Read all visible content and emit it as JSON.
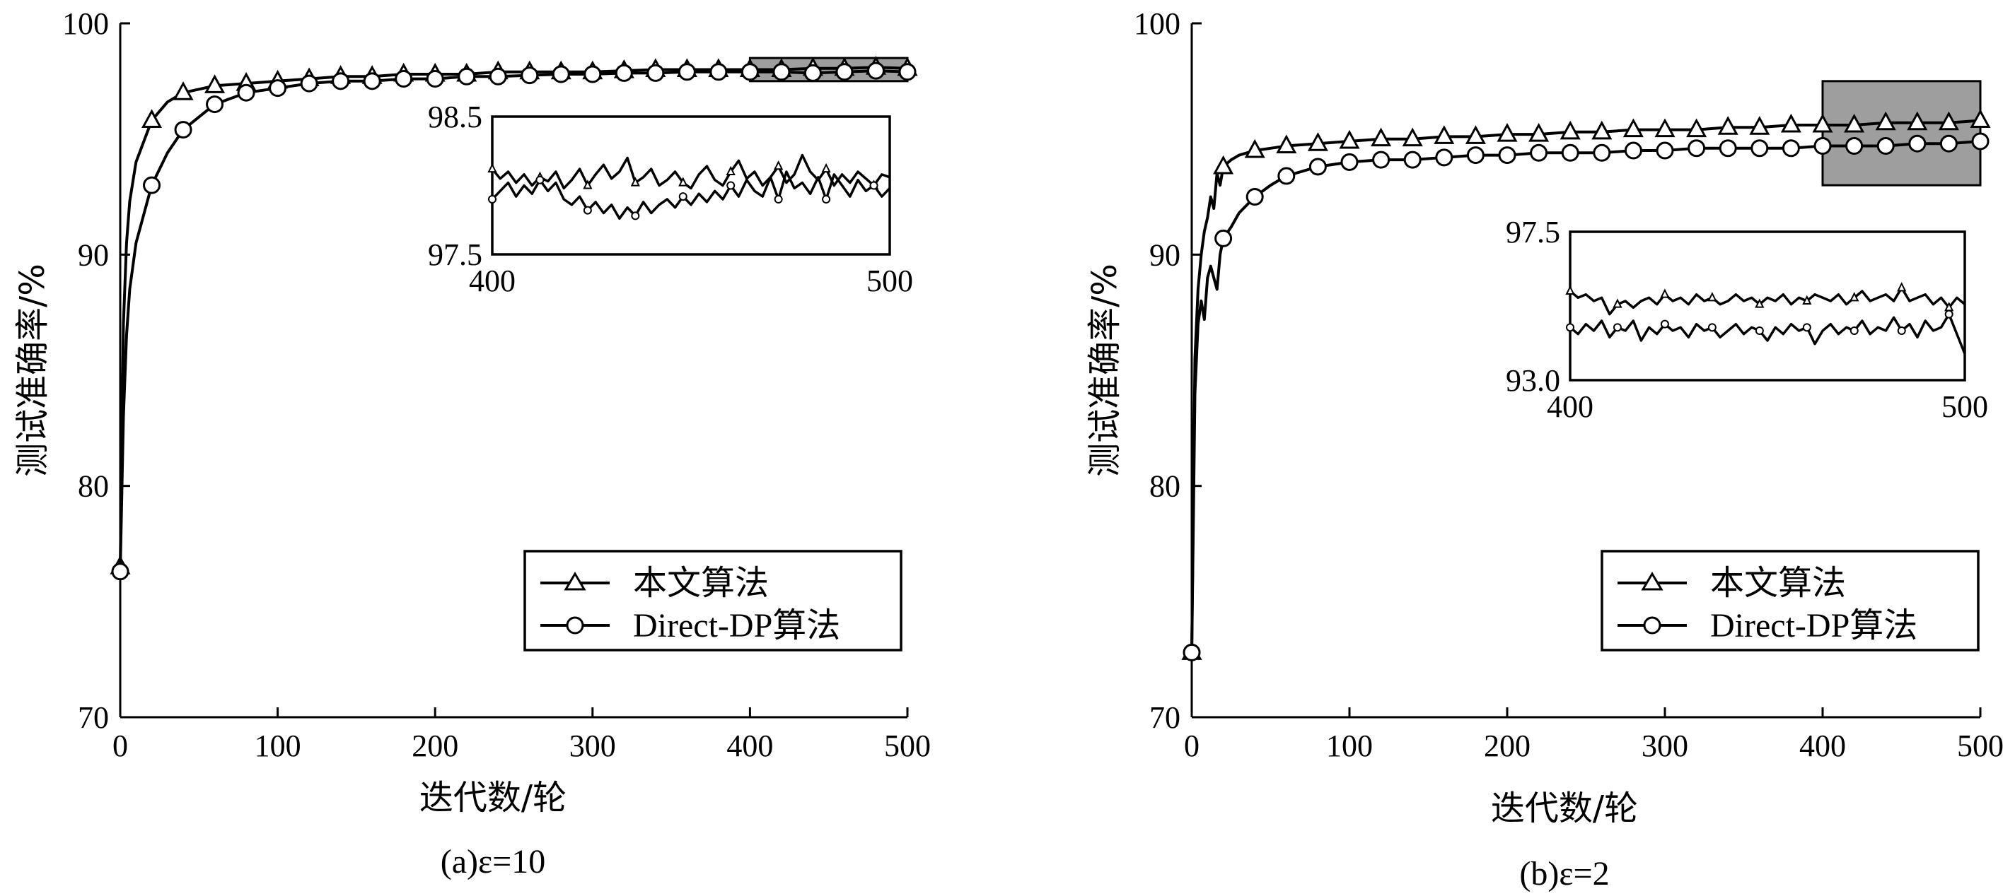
{
  "chart_data": [
    {
      "type": "line",
      "caption": "(a)ε=10",
      "xlabel": "迭代数/轮",
      "ylabel": "测试准确率/%",
      "xlim": [
        0,
        500
      ],
      "ylim": [
        70,
        100
      ],
      "xticks": [
        0,
        100,
        200,
        300,
        400,
        500
      ],
      "yticks": [
        70,
        80,
        90,
        100
      ],
      "legend_position": "bottom-right",
      "series": [
        {
          "name": "本文算法",
          "marker": "triangle",
          "x": [
            0,
            2,
            4,
            6,
            10,
            20,
            30,
            40,
            60,
            80,
            100,
            120,
            140,
            160,
            180,
            200,
            220,
            240,
            260,
            280,
            300,
            320,
            340,
            360,
            380,
            400,
            420,
            440,
            460,
            480,
            500
          ],
          "y": [
            76.5,
            87.0,
            90.5,
            92.3,
            94.0,
            95.8,
            96.6,
            97.0,
            97.3,
            97.4,
            97.5,
            97.6,
            97.7,
            97.7,
            97.8,
            97.8,
            97.8,
            97.9,
            97.9,
            97.9,
            97.9,
            97.95,
            98.0,
            98.0,
            98.0,
            98.0,
            98.0,
            98.05,
            98.05,
            98.1,
            98.05
          ],
          "marker_x": [
            0,
            20,
            40,
            60,
            80,
            100,
            120,
            140,
            160,
            180,
            200,
            220,
            240,
            260,
            280,
            300,
            320,
            340,
            360,
            380,
            400,
            420,
            440,
            460,
            480,
            500
          ]
        },
        {
          "name": "Direct-DP算法",
          "marker": "circle",
          "x": [
            0,
            2,
            4,
            6,
            10,
            20,
            30,
            40,
            60,
            80,
            100,
            120,
            140,
            160,
            180,
            200,
            220,
            240,
            260,
            280,
            300,
            320,
            340,
            360,
            380,
            400,
            420,
            440,
            460,
            480,
            500
          ],
          "y": [
            76.3,
            83.0,
            86.5,
            88.5,
            90.5,
            93.0,
            94.4,
            95.4,
            96.5,
            97.0,
            97.2,
            97.4,
            97.5,
            97.5,
            97.6,
            97.6,
            97.7,
            97.7,
            97.75,
            97.8,
            97.8,
            97.85,
            97.85,
            97.9,
            97.9,
            97.9,
            97.9,
            97.85,
            97.9,
            97.95,
            97.9
          ],
          "marker_x": [
            0,
            20,
            40,
            60,
            80,
            100,
            120,
            140,
            160,
            180,
            200,
            220,
            240,
            260,
            280,
            300,
            320,
            340,
            360,
            380,
            400,
            420,
            440,
            460,
            480,
            500
          ]
        }
      ],
      "highlight_region": {
        "x": [
          400,
          500
        ],
        "y": [
          97.5,
          98.5
        ]
      },
      "inset": {
        "xlim": [
          400,
          500
        ],
        "ylim": [
          97.5,
          98.5
        ],
        "xticks": [
          400,
          500
        ],
        "yticks": [
          97.5,
          98.5
        ],
        "series": [
          {
            "name": "本文算法",
            "x": [
              400,
              402,
              404,
              406,
              408,
              410,
              412,
              414,
              416,
              418,
              420,
              422,
              424,
              426,
              428,
              430,
              432,
              434,
              436,
              438,
              440,
              442,
              444,
              446,
              448,
              450,
              452,
              454,
              456,
              458,
              460,
              462,
              464,
              466,
              468,
              470,
              472,
              474,
              476,
              478,
              480,
              482,
              484,
              486,
              488,
              490,
              492,
              494,
              496,
              498,
              500
            ],
            "y": [
              98.12,
              98.05,
              98.1,
              98.02,
              98.08,
              98.0,
              98.06,
              98.03,
              98.1,
              97.98,
              98.04,
              98.12,
              98.0,
              98.08,
              98.15,
              98.05,
              98.1,
              98.2,
              98.02,
              98.06,
              98.12,
              98.0,
              98.04,
              98.1,
              98.02,
              97.98,
              98.08,
              98.14,
              98.04,
              98.0,
              98.1,
              98.18,
              98.05,
              98.1,
              98.0,
              98.06,
              98.14,
              98.02,
              98.08,
              98.22,
              98.1,
              98.04,
              98.12,
              98.0,
              98.08,
              98.02,
              98.1,
              98.05,
              98.0,
              98.08,
              98.06
            ]
          },
          {
            "name": "Direct-DP算法",
            "x": [
              400,
              402,
              404,
              406,
              408,
              410,
              412,
              414,
              416,
              418,
              420,
              422,
              424,
              426,
              428,
              430,
              432,
              434,
              436,
              438,
              440,
              442,
              444,
              446,
              448,
              450,
              452,
              454,
              456,
              458,
              460,
              462,
              464,
              466,
              468,
              470,
              472,
              474,
              476,
              478,
              480,
              482,
              484,
              486,
              488,
              490,
              492,
              494,
              496,
              498,
              500
            ],
            "y": [
              97.9,
              97.96,
              98.02,
              97.92,
              98.0,
              97.94,
              98.04,
              97.96,
              98.02,
              97.9,
              97.86,
              97.92,
              97.82,
              97.88,
              97.8,
              97.86,
              97.76,
              97.84,
              97.78,
              97.88,
              97.8,
              97.86,
              97.9,
              97.84,
              97.92,
              97.86,
              97.94,
              97.88,
              97.96,
              97.9,
              98.0,
              97.92,
              98.04,
              97.96,
              97.92,
              98.06,
              97.9,
              98.1,
              97.98,
              98.02,
              97.94,
              98.06,
              97.9,
              98.08,
              98.0,
              97.92,
              98.04,
              97.96,
              98.0,
              97.92,
              97.98
            ]
          }
        ]
      }
    },
    {
      "type": "line",
      "caption": "(b)ε=2",
      "xlabel": "迭代数/轮",
      "ylabel": "测试准确率/%",
      "xlim": [
        0,
        500
      ],
      "ylim": [
        70,
        100
      ],
      "xticks": [
        0,
        100,
        200,
        300,
        400,
        500
      ],
      "yticks": [
        70,
        80,
        90,
        100
      ],
      "legend_position": "bottom-right",
      "series": [
        {
          "name": "本文算法",
          "marker": "triangle",
          "x": [
            0,
            2,
            4,
            6,
            8,
            10,
            12,
            14,
            16,
            18,
            20,
            25,
            30,
            40,
            50,
            60,
            80,
            100,
            120,
            140,
            160,
            180,
            200,
            220,
            240,
            260,
            280,
            300,
            320,
            340,
            360,
            380,
            400,
            420,
            440,
            460,
            480,
            500
          ],
          "y": [
            72.8,
            85.5,
            88.5,
            90.0,
            91.0,
            91.6,
            92.5,
            92.0,
            93.5,
            93.0,
            93.8,
            94.1,
            94.3,
            94.5,
            94.6,
            94.7,
            94.8,
            94.9,
            95.0,
            95.0,
            95.1,
            95.1,
            95.2,
            95.2,
            95.3,
            95.3,
            95.4,
            95.4,
            95.4,
            95.5,
            95.5,
            95.6,
            95.6,
            95.6,
            95.7,
            95.7,
            95.7,
            95.8
          ],
          "marker_x": [
            0,
            20,
            40,
            60,
            80,
            100,
            120,
            140,
            160,
            180,
            200,
            220,
            240,
            260,
            280,
            300,
            320,
            340,
            360,
            380,
            400,
            420,
            440,
            460,
            480,
            500
          ]
        },
        {
          "name": "Direct-DP算法",
          "marker": "circle",
          "x": [
            0,
            2,
            4,
            6,
            8,
            10,
            12,
            14,
            16,
            18,
            20,
            25,
            30,
            40,
            50,
            60,
            80,
            100,
            120,
            140,
            160,
            180,
            200,
            220,
            240,
            260,
            280,
            300,
            320,
            340,
            360,
            380,
            400,
            420,
            440,
            460,
            480,
            500
          ],
          "y": [
            72.8,
            84.0,
            87.0,
            88.0,
            87.2,
            89.0,
            89.5,
            89.0,
            88.5,
            90.0,
            90.7,
            91.2,
            91.8,
            92.5,
            93.0,
            93.4,
            93.8,
            94.0,
            94.1,
            94.1,
            94.2,
            94.3,
            94.3,
            94.4,
            94.4,
            94.4,
            94.5,
            94.5,
            94.6,
            94.6,
            94.6,
            94.6,
            94.7,
            94.7,
            94.7,
            94.8,
            94.8,
            94.9
          ],
          "marker_x": [
            0,
            20,
            40,
            60,
            80,
            100,
            120,
            140,
            160,
            180,
            200,
            220,
            240,
            260,
            280,
            300,
            320,
            340,
            360,
            380,
            400,
            420,
            440,
            460,
            480,
            500
          ]
        }
      ],
      "highlight_region": {
        "x": [
          400,
          500
        ],
        "y": [
          93.0,
          97.5
        ]
      },
      "inset": {
        "xlim": [
          400,
          500
        ],
        "ylim": [
          93.0,
          97.5
        ],
        "xticks": [
          400,
          500
        ],
        "yticks": [
          97.5,
          93.0
        ],
        "series": [
          {
            "name": "本文算法",
            "x": [
              400,
              402,
              404,
              406,
              408,
              410,
              412,
              414,
              416,
              418,
              420,
              422,
              424,
              426,
              428,
              430,
              432,
              434,
              436,
              438,
              440,
              442,
              444,
              446,
              448,
              450,
              452,
              454,
              456,
              458,
              460,
              462,
              464,
              466,
              468,
              470,
              472,
              474,
              476,
              478,
              480,
              482,
              484,
              486,
              488,
              490,
              492,
              494,
              496,
              498,
              500
            ],
            "y": [
              95.7,
              95.5,
              95.6,
              95.4,
              95.5,
              95.0,
              95.3,
              95.4,
              95.2,
              95.4,
              95.5,
              95.3,
              95.6,
              95.4,
              95.5,
              95.3,
              95.6,
              95.4,
              95.5,
              95.3,
              95.4,
              95.6,
              95.4,
              95.5,
              95.3,
              95.5,
              95.4,
              95.6,
              95.3,
              95.5,
              95.4,
              95.6,
              95.5,
              95.4,
              95.6,
              95.3,
              95.5,
              95.7,
              95.4,
              95.5,
              95.6,
              95.4,
              95.8,
              95.4,
              95.5,
              95.6,
              95.3,
              95.5,
              95.2,
              95.5,
              95.3
            ]
          },
          {
            "name": "Direct-DP算法",
            "x": [
              400,
              402,
              404,
              406,
              408,
              410,
              412,
              414,
              416,
              418,
              420,
              422,
              424,
              426,
              428,
              430,
              432,
              434,
              436,
              438,
              440,
              442,
              444,
              446,
              448,
              450,
              452,
              454,
              456,
              458,
              460,
              462,
              464,
              466,
              468,
              470,
              472,
              474,
              476,
              478,
              480,
              482,
              484,
              486,
              488,
              490,
              492,
              494,
              496,
              498,
              500
            ],
            "y": [
              94.6,
              94.4,
              94.7,
              94.5,
              94.8,
              94.3,
              94.6,
              94.5,
              94.8,
              94.2,
              94.6,
              94.4,
              94.7,
              94.5,
              94.6,
              94.3,
              94.7,
              94.5,
              94.6,
              94.3,
              94.5,
              94.7,
              94.4,
              94.6,
              94.5,
              94.2,
              94.6,
              94.4,
              94.7,
              94.5,
              94.6,
              94.1,
              94.5,
              94.7,
              94.4,
              94.6,
              94.5,
              94.8,
              94.4,
              94.6,
              94.5,
              94.9,
              94.5,
              94.7,
              94.3,
              94.8,
              94.5,
              94.6,
              95.0,
              94.4,
              93.8
            ]
          }
        ]
      }
    }
  ]
}
